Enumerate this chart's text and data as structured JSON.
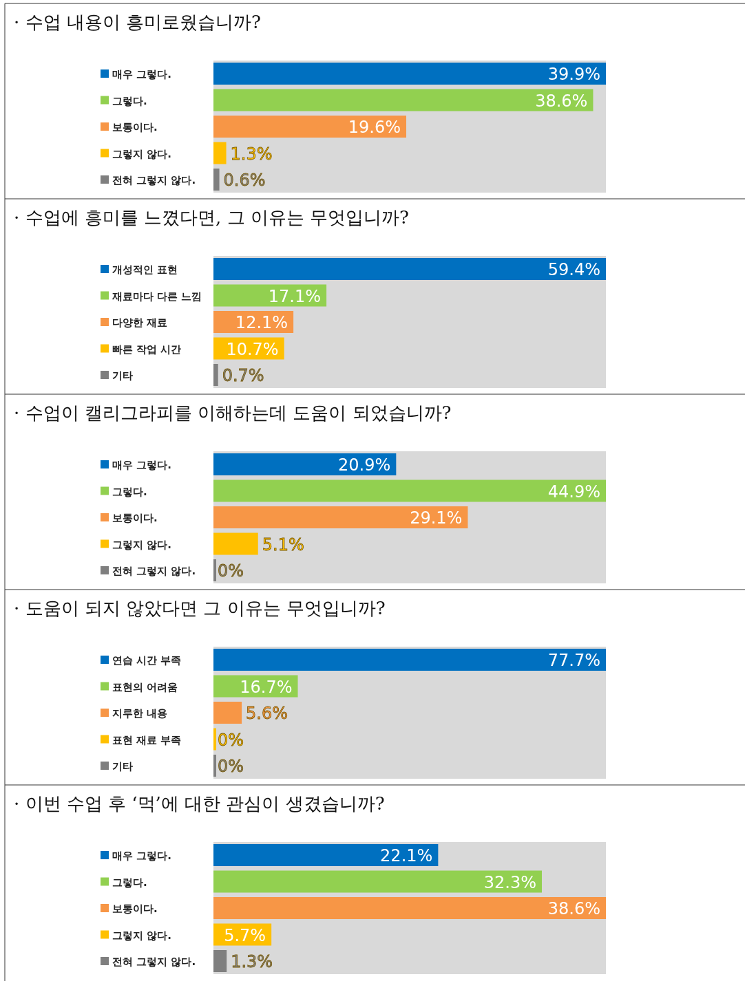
{
  "chart_data": [
    {
      "type": "bar",
      "orientation": "horizontal",
      "title": "· 수업 내용이 흥미로웠습니까?",
      "categories": [
        "매우 그렇다.",
        "그렇다.",
        "보통이다.",
        "그렇지 않다.",
        "전혀 그렇지 않다."
      ],
      "values": [
        39.9,
        38.6,
        19.6,
        1.3,
        0.6
      ],
      "colors": [
        "#0070c0",
        "#92d050",
        "#f79646",
        "#ffc000",
        "#7f7f7f"
      ],
      "value_labels": [
        "39.9%",
        "38.6%",
        "19.6%",
        "1.3%",
        "0.6%"
      ],
      "bands": [
        {
          "axis": "x",
          "from": 0,
          "to": 39.9,
          "color": "#d9d9d9"
        }
      ]
    },
    {
      "type": "bar",
      "orientation": "horizontal",
      "title": "· 수업에 흥미를 느꼈다면, 그 이유는 무엇입니까?",
      "categories": [
        "개성적인 표현",
        "재료마다 다른 느낌",
        "다양한 재료",
        "빠른 작업 시간",
        "기타"
      ],
      "values": [
        59.4,
        17.1,
        12.1,
        10.7,
        0.7
      ],
      "colors": [
        "#0070c0",
        "#92d050",
        "#f79646",
        "#ffc000",
        "#7f7f7f"
      ],
      "value_labels": [
        "59.4%",
        "17.1%",
        "12.1%",
        "10.7%",
        "0.7%"
      ],
      "bands": [
        {
          "axis": "x",
          "from": 0,
          "to": 59.4,
          "color": "#d9d9d9"
        }
      ]
    },
    {
      "type": "bar",
      "orientation": "horizontal",
      "title": "· 수업이 캘리그라피를 이해하는데 도움이 되었습니까?",
      "categories": [
        "매우 그렇다.",
        "그렇다.",
        "보통이다.",
        "그렇지 않다.",
        "전혀 그렇지 않다."
      ],
      "values": [
        20.9,
        44.9,
        29.1,
        5.1,
        0
      ],
      "colors": [
        "#0070c0",
        "#92d050",
        "#f79646",
        "#ffc000",
        "#7f7f7f"
      ],
      "value_labels": [
        "20.9%",
        "44.9%",
        "29.1%",
        "5.1%",
        "0%"
      ],
      "bands": [
        {
          "axis": "x",
          "from": 0,
          "to": 44.9,
          "color": "#d9d9d9"
        }
      ]
    },
    {
      "type": "bar",
      "orientation": "horizontal",
      "title": "· 도움이 되지 않았다면 그 이유는 무엇입니까?",
      "categories": [
        "연습 시간 부족",
        "표현의 어려움",
        "지루한 내용",
        "표현 재료 부족",
        "기타"
      ],
      "values": [
        77.7,
        16.7,
        5.6,
        0,
        0
      ],
      "colors": [
        "#0070c0",
        "#92d050",
        "#f79646",
        "#ffc000",
        "#7f7f7f"
      ],
      "value_labels": [
        "77.7%",
        "16.7%",
        "5.6%",
        "0%",
        "0%"
      ],
      "bands": [
        {
          "axis": "x",
          "from": 0,
          "to": 77.7,
          "color": "#d9d9d9"
        }
      ]
    },
    {
      "type": "bar",
      "orientation": "horizontal",
      "title": "· 이번 수업 후 ‘먹’에 대한 관심이 생겼습니까?",
      "categories": [
        "매우 그렇다.",
        "그렇다.",
        "보통이다.",
        "그렇지 않다.",
        "전혀 그렇지 않다."
      ],
      "values": [
        22.1,
        32.3,
        38.6,
        5.7,
        1.3
      ],
      "colors": [
        "#0070c0",
        "#92d050",
        "#f79646",
        "#ffc000",
        "#7f7f7f"
      ],
      "value_labels": [
        "22.1%",
        "32.3%",
        "38.6%",
        "5.7%",
        "1.3%"
      ],
      "bands": [
        {
          "axis": "x",
          "from": 0,
          "to": 38.6,
          "color": "#d9d9d9"
        }
      ]
    }
  ]
}
